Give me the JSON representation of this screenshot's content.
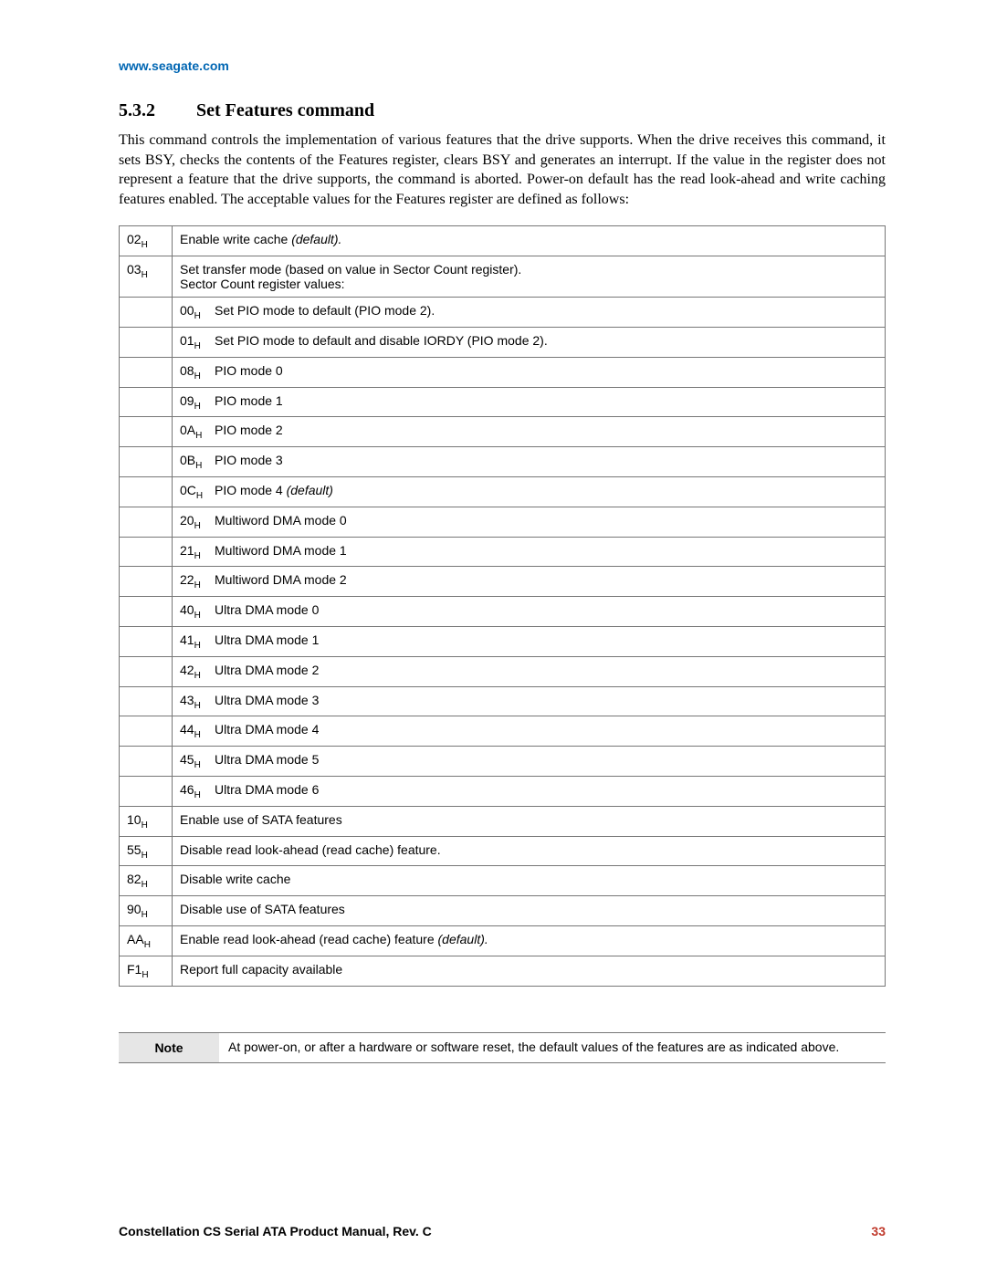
{
  "header_url": "www.seagate.com",
  "section": {
    "number": "5.3.2",
    "title": "Set Features command"
  },
  "paragraph": "This command controls the implementation of various features that the drive supports. When the drive receives this command, it sets BSY, checks the contents of the Features register, clears BSY and generates an interrupt. If the value in the register does not represent a feature that the drive supports, the command is aborted. Power-on default has the read look-ahead and write caching features enabled. The acceptable values for the Features register are defined as follows:",
  "rows": [
    {
      "code": "02",
      "desc": "Enable write cache ",
      "suffix_italic": "(default)."
    },
    {
      "code": "03",
      "desc": "Set transfer mode (based on value in Sector Count register).\nSector Count register values:"
    },
    {
      "code": "",
      "sub_hex": "00",
      "desc": "Set PIO mode to default (PIO mode 2)."
    },
    {
      "code": "",
      "sub_hex": "01",
      "desc": "Set PIO mode to default and disable IORDY (PIO mode 2)."
    },
    {
      "code": "",
      "sub_hex": "08",
      "desc": "PIO mode 0"
    },
    {
      "code": "",
      "sub_hex": "09",
      "desc": "PIO mode 1"
    },
    {
      "code": "",
      "sub_hex": "0A",
      "desc": "PIO mode 2"
    },
    {
      "code": "",
      "sub_hex": "0B",
      "desc": "PIO mode 3"
    },
    {
      "code": "",
      "sub_hex": "0C",
      "desc": "PIO mode 4 ",
      "suffix_italic": "(default)"
    },
    {
      "code": "",
      "sub_hex": "20",
      "desc": "Multiword DMA mode 0"
    },
    {
      "code": "",
      "sub_hex": "21",
      "desc": "Multiword DMA mode 1"
    },
    {
      "code": "",
      "sub_hex": "22",
      "desc": "Multiword DMA mode 2"
    },
    {
      "code": "",
      "sub_hex": "40",
      "desc": "Ultra DMA mode 0"
    },
    {
      "code": "",
      "sub_hex": "41",
      "desc": "Ultra DMA mode 1"
    },
    {
      "code": "",
      "sub_hex": "42",
      "desc": "Ultra DMA mode 2"
    },
    {
      "code": "",
      "sub_hex": "43",
      "desc": "Ultra DMA mode 3"
    },
    {
      "code": "",
      "sub_hex": "44",
      "desc": "Ultra DMA mode 4"
    },
    {
      "code": "",
      "sub_hex": "45",
      "desc": "Ultra DMA mode 5"
    },
    {
      "code": "",
      "sub_hex": "46",
      "desc": "Ultra DMA mode 6"
    },
    {
      "code": "10",
      "desc": "Enable use of SATA features"
    },
    {
      "code": "55",
      "desc": "Disable read look-ahead (read cache) feature."
    },
    {
      "code": "82",
      "desc": "Disable write cache"
    },
    {
      "code": "90",
      "desc": "Disable use of SATA features"
    },
    {
      "code": "AA",
      "desc": "Enable read look-ahead (read cache) feature ",
      "suffix_italic": "(default)."
    },
    {
      "code": "F1",
      "desc": "Report full capacity available"
    }
  ],
  "note": {
    "label": "Note",
    "text": "At power-on, or after a hardware or software reset, the default values of the features are as indicated above."
  },
  "footer": {
    "title": "Constellation CS Serial ATA Product Manual, Rev. C",
    "page": "33"
  },
  "colors": {
    "link": "#0066b3",
    "page_num": "#c0392b",
    "border": "#777777",
    "note_bg": "#e6e6e6"
  }
}
